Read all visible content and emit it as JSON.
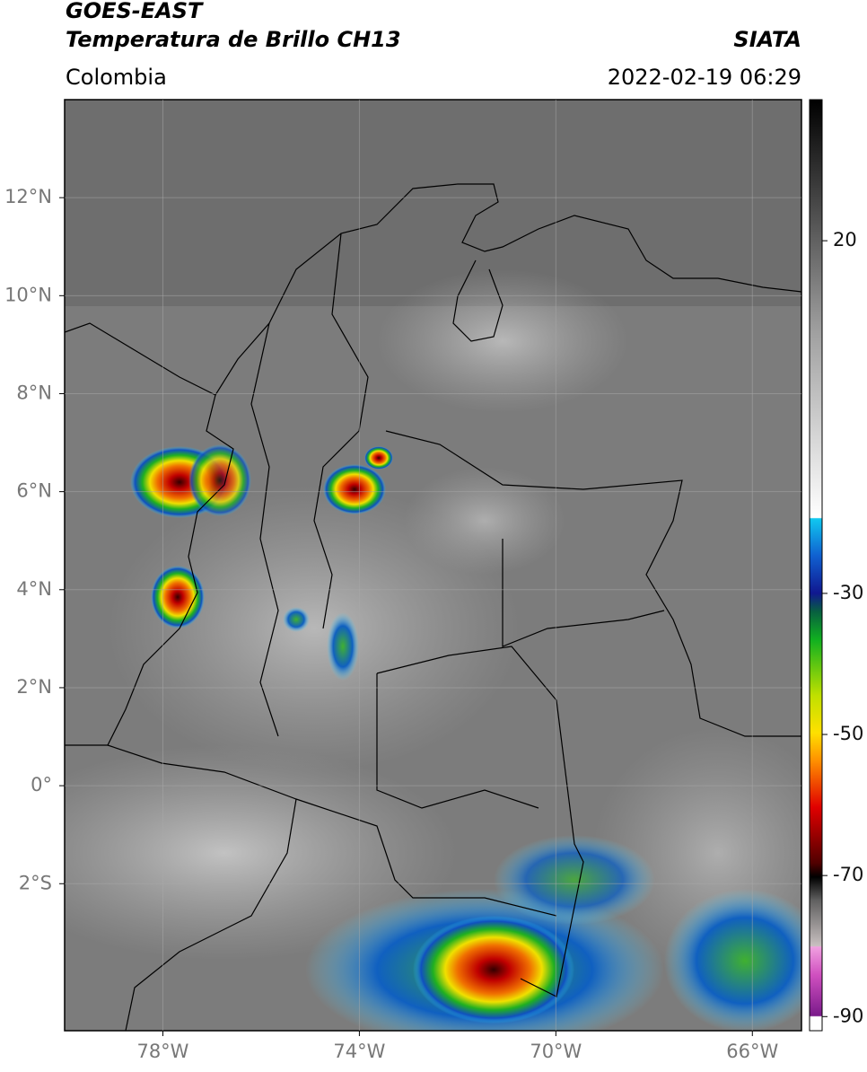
{
  "header": {
    "title": "GOES-EAST",
    "subtitle": "Temperatura de Brillo CH13",
    "source": "SIATA",
    "region": "Colombia",
    "datetime": "2022-02-19 06:29"
  },
  "map": {
    "xlim": [
      -80,
      -65
    ],
    "ylim": [
      -5,
      14
    ],
    "xticks": [
      {
        "value": -78,
        "label": "78°W"
      },
      {
        "value": -74,
        "label": "74°W"
      },
      {
        "value": -70,
        "label": "70°W"
      },
      {
        "value": -66,
        "label": "66°W"
      }
    ],
    "yticks": [
      {
        "value": 12,
        "label": "12°N"
      },
      {
        "value": 10,
        "label": "10°N"
      },
      {
        "value": 8,
        "label": "8°N"
      },
      {
        "value": 6,
        "label": "6°N"
      },
      {
        "value": 4,
        "label": "4°N"
      },
      {
        "value": 2,
        "label": "2°N"
      },
      {
        "value": 0,
        "label": "0°"
      },
      {
        "value": -2,
        "label": "2°S"
      }
    ],
    "grid": true
  },
  "colorbar": {
    "lim": [
      -92,
      40
    ],
    "ticks": [
      20,
      -30,
      -50,
      -70,
      -90
    ]
  }
}
